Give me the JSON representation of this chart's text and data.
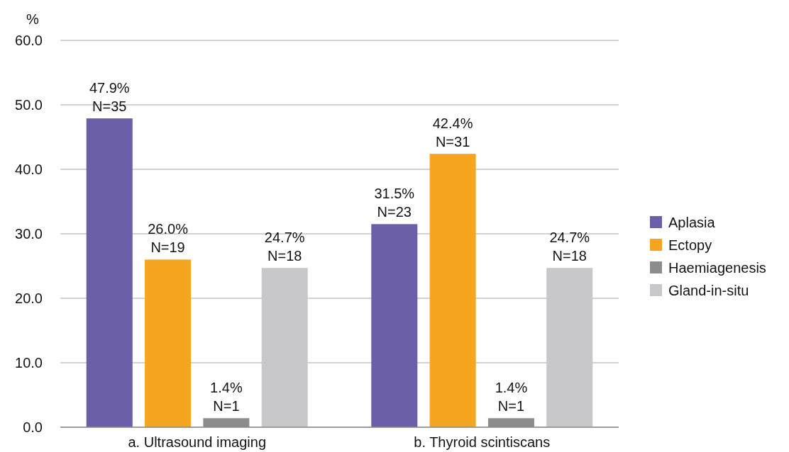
{
  "chart_data": {
    "type": "bar",
    "ylabel": "%",
    "categories": [
      "a. Ultrasound imaging",
      "b. Thyroid scintiscans"
    ],
    "series": [
      {
        "name": "Aplasia",
        "color": "#6a5fa8",
        "values": [
          47.9,
          31.5
        ],
        "value_labels": [
          "47.9%\nN=35",
          "31.5%\nN=23"
        ]
      },
      {
        "name": "Ectopy",
        "color": "#f5a51f",
        "values": [
          26.0,
          42.4
        ],
        "value_labels": [
          "26.0%\nN=19",
          "42.4%\nN=31"
        ]
      },
      {
        "name": "Haemiagenesis",
        "color": "#8c8c8c",
        "values": [
          1.4,
          1.4
        ],
        "value_labels": [
          "1.4%\nN=1",
          "1.4%\nN=1"
        ]
      },
      {
        "name": "Gland-in-situ",
        "color": "#c8c8ca",
        "values": [
          24.7,
          24.7
        ],
        "value_labels": [
          "24.7%\nN=18",
          "24.7%\nN=18"
        ]
      }
    ],
    "ylim": [
      0,
      60
    ],
    "yticks": [
      {
        "value": 0,
        "label": "0.0"
      },
      {
        "value": 10,
        "label": "10.0"
      },
      {
        "value": 20,
        "label": "20.0"
      },
      {
        "value": 30,
        "label": "30.0"
      },
      {
        "value": 40,
        "label": "40.0"
      },
      {
        "value": 50,
        "label": "50.0"
      },
      {
        "value": 60,
        "label": "60.0"
      }
    ],
    "grid": "y",
    "legend": "right"
  }
}
